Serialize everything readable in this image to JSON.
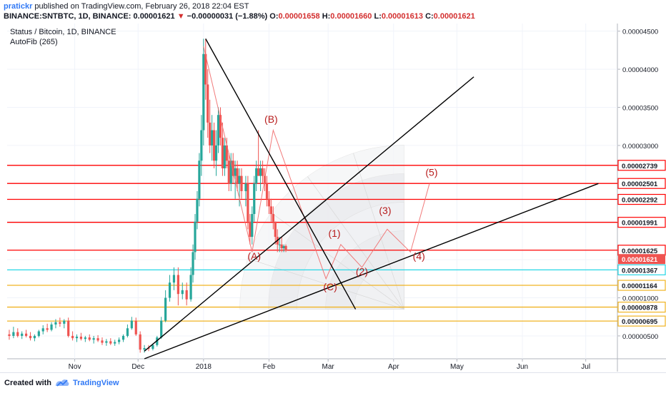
{
  "header": {
    "username": "pratickr",
    "published_text": "published on TradingView.com, February 26, 2018 22:04 EST",
    "symbol_text": "BINANCE:SNTBTC, 1D, BINANCE",
    "last_price": "0.00001621",
    "change_text": "−0.00000031 (−1.88%)",
    "o_label": "O:",
    "o_value": "0.00001658",
    "h_label": "H:",
    "h_value": "0.00001660",
    "l_label": "L:",
    "l_value": "0.00001613",
    "c_label": "C:",
    "c_value": "0.00001621"
  },
  "footer": {
    "created_with": "Created with",
    "brand": "TradingView"
  },
  "chart_data": {
    "type": "candlestick",
    "title": "Status / Bitcoin, 1D, BINANCE",
    "subtitle": "AutoFib (265)",
    "ylim": [
      2e-07,
      4.6e-06
    ],
    "y_ticks": [
      5e-07,
      1e-06,
      1.5e-06,
      2e-06,
      2.5e-06,
      3e-06,
      3.5e-06,
      4e-06,
      4.5e-06
    ],
    "y_tick_labels": [
      "0.00000500",
      "0.00001000",
      "0.00001500",
      "0.00002000",
      "0.00002500",
      "0.00003000",
      "0.00003500",
      "0.00004000",
      "0.00004500"
    ],
    "x_tick_labels": [
      "Nov",
      "Dec",
      "2018",
      "Feb",
      "Mar",
      "Apr",
      "May",
      "Jun",
      "Jul"
    ],
    "x_tick_days": [
      31,
      61,
      92,
      123,
      151,
      182,
      212,
      243,
      273
    ],
    "day_range": [
      -1,
      288
    ],
    "last_close_day": 157,
    "colors": {
      "up": "#26a69a",
      "down": "#ef5350",
      "fib": "#ff0000",
      "fib_label_bg": "#ff0000",
      "fib_cyan": "#26d7e6",
      "fib_gold": "#f0b323"
    },
    "price_tags": [
      {
        "value": 2.739e-06,
        "label": "0.00002739",
        "style": "red"
      },
      {
        "value": 2.501e-06,
        "label": "0.00002501",
        "style": "red"
      },
      {
        "value": 2.292e-06,
        "label": "0.00002292",
        "style": "red"
      },
      {
        "value": 1.991e-06,
        "label": "0.00001991",
        "style": "red"
      },
      {
        "value": 1.625e-06,
        "label": "0.00001625",
        "style": "red"
      },
      {
        "value": 1.621e-06,
        "label": "0.00001621",
        "style": "last"
      },
      {
        "value": 1.367e-06,
        "label": "0.00001367",
        "style": "cyan"
      },
      {
        "value": 1.164e-06,
        "label": "0.00001164",
        "style": "gold"
      },
      {
        "value": 8.78e-07,
        "label": "0.00000878",
        "style": "gold"
      },
      {
        "value": 6.95e-07,
        "label": "0.00000695",
        "style": "gold"
      }
    ],
    "fib_levels": [
      {
        "value": 2.739e-06,
        "color": "red"
      },
      {
        "value": 2.501e-06,
        "color": "red"
      },
      {
        "value": 2.292e-06,
        "color": "red"
      },
      {
        "value": 1.991e-06,
        "color": "red"
      },
      {
        "value": 1.625e-06,
        "color": "red"
      },
      {
        "value": 1.367e-06,
        "color": "cyan"
      },
      {
        "value": 1.164e-06,
        "color": "gold"
      },
      {
        "value": 8.78e-07,
        "color": "gold"
      },
      {
        "value": 6.95e-07,
        "color": "gold"
      }
    ],
    "trend_lines": [
      {
        "from": [
          93,
          4.4e-06
        ],
        "to": [
          164,
          8.5e-07
        ]
      },
      {
        "from": [
          64,
          3e-07
        ],
        "to": [
          220,
          3.9e-06
        ]
      },
      {
        "from": [
          64,
          2e-07
        ],
        "to": [
          279,
          2.5e-06
        ]
      }
    ],
    "wave_path": [
      [
        92,
        4.3e-06
      ],
      [
        115,
        1.6e-06
      ],
      [
        125,
        3.2e-06
      ],
      [
        150,
        1.25e-06
      ],
      [
        157,
        1.7e-06
      ],
      [
        167,
        1.4e-06
      ],
      [
        179,
        1.9e-06
      ],
      [
        190,
        1.6e-06
      ],
      [
        199,
        2.5e-06
      ]
    ],
    "wave_labels": [
      {
        "text": "(B)",
        "day": 124,
        "price": 3.3e-06
      },
      {
        "text": "(A)",
        "day": 116,
        "price": 1.5e-06
      },
      {
        "text": "(C)",
        "day": 152,
        "price": 1.1e-06
      },
      {
        "text": "(1)",
        "day": 154,
        "price": 1.8e-06
      },
      {
        "text": "(2)",
        "day": 167,
        "price": 1.3e-06
      },
      {
        "text": "(3)",
        "day": 178,
        "price": 2.1e-06
      },
      {
        "text": "(4)",
        "day": 194,
        "price": 1.5e-06
      },
      {
        "text": "(5)",
        "day": 200,
        "price": 2.6e-06
      }
    ],
    "fan_center": [
      187,
      8.5e-07
    ],
    "candles": [
      {
        "d": 0,
        "o": 5.2e-07,
        "h": 5.8e-07,
        "l": 4.5e-07,
        "c": 5e-07
      },
      {
        "d": 2,
        "o": 5e-07,
        "h": 6.2e-07,
        "l": 4.7e-07,
        "c": 5.5e-07
      },
      {
        "d": 4,
        "o": 5.5e-07,
        "h": 6e-07,
        "l": 4.8e-07,
        "c": 5e-07
      },
      {
        "d": 6,
        "o": 5e-07,
        "h": 5.6e-07,
        "l": 4.6e-07,
        "c": 5.3e-07
      },
      {
        "d": 8,
        "o": 5.3e-07,
        "h": 5.8e-07,
        "l": 4.8e-07,
        "c": 5e-07
      },
      {
        "d": 10,
        "o": 5e-07,
        "h": 5.5e-07,
        "l": 4.4e-07,
        "c": 4.7e-07
      },
      {
        "d": 12,
        "o": 4.7e-07,
        "h": 5.2e-07,
        "l": 4.3e-07,
        "c": 5e-07
      },
      {
        "d": 14,
        "o": 5e-07,
        "h": 5.8e-07,
        "l": 4.8e-07,
        "c": 5.6e-07
      },
      {
        "d": 16,
        "o": 5.6e-07,
        "h": 6.4e-07,
        "l": 5.2e-07,
        "c": 6e-07
      },
      {
        "d": 18,
        "o": 6e-07,
        "h": 6.6e-07,
        "l": 5.5e-07,
        "c": 5.8e-07
      },
      {
        "d": 20,
        "o": 5.8e-07,
        "h": 6.8e-07,
        "l": 5.6e-07,
        "c": 6.5e-07
      },
      {
        "d": 22,
        "o": 6.5e-07,
        "h": 7.2e-07,
        "l": 6e-07,
        "c": 6.8e-07
      },
      {
        "d": 24,
        "o": 6.8e-07,
        "h": 7.4e-07,
        "l": 6.2e-07,
        "c": 6.6e-07
      },
      {
        "d": 26,
        "o": 6.6e-07,
        "h": 7.2e-07,
        "l": 6e-07,
        "c": 7e-07
      },
      {
        "d": 28,
        "o": 7e-07,
        "h": 7.4e-07,
        "l": 4.8e-07,
        "c": 5e-07
      },
      {
        "d": 30,
        "o": 5e-07,
        "h": 5.6e-07,
        "l": 4.4e-07,
        "c": 4.7e-07
      },
      {
        "d": 32,
        "o": 4.7e-07,
        "h": 5.2e-07,
        "l": 4.2e-07,
        "c": 4.9e-07
      },
      {
        "d": 34,
        "o": 4.9e-07,
        "h": 5.4e-07,
        "l": 4.4e-07,
        "c": 4.6e-07
      },
      {
        "d": 36,
        "o": 4.6e-07,
        "h": 5e-07,
        "l": 4.2e-07,
        "c": 4.8e-07
      },
      {
        "d": 38,
        "o": 4.8e-07,
        "h": 5.2e-07,
        "l": 4.3e-07,
        "c": 4.5e-07
      },
      {
        "d": 40,
        "o": 4.5e-07,
        "h": 5e-07,
        "l": 4e-07,
        "c": 4.7e-07
      },
      {
        "d": 42,
        "o": 4.7e-07,
        "h": 5.1e-07,
        "l": 4.2e-07,
        "c": 4.4e-07
      },
      {
        "d": 44,
        "o": 4.4e-07,
        "h": 4.8e-07,
        "l": 3.8e-07,
        "c": 4.1e-07
      },
      {
        "d": 46,
        "o": 4.1e-07,
        "h": 4.6e-07,
        "l": 3.7e-07,
        "c": 4.3e-07
      },
      {
        "d": 48,
        "o": 4.3e-07,
        "h": 4.7e-07,
        "l": 3.8e-07,
        "c": 4e-07
      },
      {
        "d": 50,
        "o": 4e-07,
        "h": 4.5e-07,
        "l": 3.7e-07,
        "c": 4.2e-07
      },
      {
        "d": 52,
        "o": 4.2e-07,
        "h": 4.8e-07,
        "l": 3.9e-07,
        "c": 4.5e-07
      },
      {
        "d": 54,
        "o": 4.5e-07,
        "h": 5.2e-07,
        "l": 4.2e-07,
        "c": 5e-07
      },
      {
        "d": 56,
        "o": 5e-07,
        "h": 6.5e-07,
        "l": 4.8e-07,
        "c": 6e-07
      },
      {
        "d": 58,
        "o": 6e-07,
        "h": 7.5e-07,
        "l": 5.8e-07,
        "c": 7e-07
      },
      {
        "d": 60,
        "o": 7e-07,
        "h": 7.4e-07,
        "l": 5e-07,
        "c": 5.2e-07
      },
      {
        "d": 62,
        "o": 5.2e-07,
        "h": 5.6e-07,
        "l": 2.8e-07,
        "c": 3.2e-07
      },
      {
        "d": 64,
        "o": 3.2e-07,
        "h": 3.8e-07,
        "l": 2.8e-07,
        "c": 3.4e-07
      },
      {
        "d": 66,
        "o": 3.4e-07,
        "h": 3.8e-07,
        "l": 3e-07,
        "c": 3.3e-07
      },
      {
        "d": 68,
        "o": 3.3e-07,
        "h": 4e-07,
        "l": 3.1e-07,
        "c": 3.8e-07
      },
      {
        "d": 70,
        "o": 3.8e-07,
        "h": 5e-07,
        "l": 3.6e-07,
        "c": 4.8e-07
      },
      {
        "d": 72,
        "o": 4.8e-07,
        "h": 7.5e-07,
        "l": 4.6e-07,
        "c": 7e-07
      },
      {
        "d": 74,
        "o": 7e-07,
        "h": 1.1e-06,
        "l": 6.8e-07,
        "c": 1e-06
      },
      {
        "d": 76,
        "o": 1e-06,
        "h": 1.3e-06,
        "l": 9.5e-07,
        "c": 1.2e-06
      },
      {
        "d": 78,
        "o": 1.2e-06,
        "h": 1.4e-06,
        "l": 1.1e-06,
        "c": 1.3e-06
      },
      {
        "d": 80,
        "o": 1.3e-06,
        "h": 1.4e-06,
        "l": 9e-07,
        "c": 1.05e-06
      },
      {
        "d": 82,
        "o": 1.05e-06,
        "h": 1.2e-06,
        "l": 9.8e-07,
        "c": 1.1e-06
      },
      {
        "d": 84,
        "o": 1.1e-06,
        "h": 1.2e-06,
        "l": 9e-07,
        "c": 9.8e-07
      },
      {
        "d": 86,
        "o": 9.8e-07,
        "h": 1.4e-06,
        "l": 9.5e-07,
        "c": 1.3e-06
      },
      {
        "d": 87,
        "o": 1.3e-06,
        "h": 1.7e-06,
        "l": 1.2e-06,
        "c": 1.6e-06
      },
      {
        "d": 88,
        "o": 1.6e-06,
        "h": 2.1e-06,
        "l": 1.5e-06,
        "c": 2e-06
      },
      {
        "d": 89,
        "o": 2e-06,
        "h": 2.4e-06,
        "l": 1.9e-06,
        "c": 2.3e-06
      },
      {
        "d": 90,
        "o": 2.3e-06,
        "h": 2.9e-06,
        "l": 2.2e-06,
        "c": 2.8e-06
      },
      {
        "d": 91,
        "o": 2.8e-06,
        "h": 3.4e-06,
        "l": 2.6e-06,
        "c": 3.2e-06
      },
      {
        "d": 92,
        "o": 3.2e-06,
        "h": 4.4e-06,
        "l": 3e-06,
        "c": 4.2e-06
      },
      {
        "d": 93,
        "o": 4.2e-06,
        "h": 4.4e-06,
        "l": 3.6e-06,
        "c": 3.8e-06
      },
      {
        "d": 94,
        "o": 3.8e-06,
        "h": 4e-06,
        "l": 3.1e-06,
        "c": 3.3e-06
      },
      {
        "d": 95,
        "o": 3.3e-06,
        "h": 3.6e-06,
        "l": 2.9e-06,
        "c": 3e-06
      },
      {
        "d": 96,
        "o": 3e-06,
        "h": 3.4e-06,
        "l": 2.8e-06,
        "c": 3.2e-06
      },
      {
        "d": 97,
        "o": 3.2e-06,
        "h": 3.3e-06,
        "l": 2.7e-06,
        "c": 2.8e-06
      },
      {
        "d": 98,
        "o": 2.8e-06,
        "h": 3.2e-06,
        "l": 2.6e-06,
        "c": 3e-06
      },
      {
        "d": 99,
        "o": 3e-06,
        "h": 3.5e-06,
        "l": 2.9e-06,
        "c": 3.4e-06
      },
      {
        "d": 100,
        "o": 3.4e-06,
        "h": 3.5e-06,
        "l": 3e-06,
        "c": 3.1e-06
      },
      {
        "d": 101,
        "o": 3.1e-06,
        "h": 3.3e-06,
        "l": 2.6e-06,
        "c": 2.7e-06
      },
      {
        "d": 102,
        "o": 2.7e-06,
        "h": 3.1e-06,
        "l": 2.6e-06,
        "c": 3e-06
      },
      {
        "d": 103,
        "o": 3e-06,
        "h": 3.1e-06,
        "l": 2.7e-06,
        "c": 2.8e-06
      },
      {
        "d": 104,
        "o": 2.8e-06,
        "h": 2.9e-06,
        "l": 2.4e-06,
        "c": 2.5e-06
      },
      {
        "d": 105,
        "o": 2.5e-06,
        "h": 2.9e-06,
        "l": 2.4e-06,
        "c": 2.8e-06
      },
      {
        "d": 106,
        "o": 2.8e-06,
        "h": 2.9e-06,
        "l": 2.5e-06,
        "c": 2.6e-06
      },
      {
        "d": 107,
        "o": 2.6e-06,
        "h": 2.8e-06,
        "l": 2.3e-06,
        "c": 2.7e-06
      },
      {
        "d": 108,
        "o": 2.7e-06,
        "h": 2.8e-06,
        "l": 2.4e-06,
        "c": 2.5e-06
      },
      {
        "d": 109,
        "o": 2.5e-06,
        "h": 2.7e-06,
        "l": 2.2e-06,
        "c": 2.6e-06
      },
      {
        "d": 110,
        "o": 2.6e-06,
        "h": 2.7e-06,
        "l": 2.3e-06,
        "c": 2.4e-06
      },
      {
        "d": 112,
        "o": 2.4e-06,
        "h": 2.6e-06,
        "l": 2.2e-06,
        "c": 2.5e-06
      },
      {
        "d": 113,
        "o": 2.5e-06,
        "h": 2.6e-06,
        "l": 1.9e-06,
        "c": 2e-06
      },
      {
        "d": 114,
        "o": 2e-06,
        "h": 2.1e-06,
        "l": 1.7e-06,
        "c": 1.8e-06
      },
      {
        "d": 115,
        "o": 1.8e-06,
        "h": 2.2e-06,
        "l": 1.7e-06,
        "c": 2.1e-06
      },
      {
        "d": 116,
        "o": 2.1e-06,
        "h": 2.6e-06,
        "l": 2e-06,
        "c": 2.5e-06
      },
      {
        "d": 117,
        "o": 2.5e-06,
        "h": 2.8e-06,
        "l": 2.4e-06,
        "c": 2.7e-06
      },
      {
        "d": 118,
        "o": 2.7e-06,
        "h": 3.2e-06,
        "l": 2.6e-06,
        "c": 2.6e-06
      },
      {
        "d": 119,
        "o": 2.6e-06,
        "h": 2.8e-06,
        "l": 2.4e-06,
        "c": 2.7e-06
      },
      {
        "d": 120,
        "o": 2.7e-06,
        "h": 2.8e-06,
        "l": 2.5e-06,
        "c": 2.6e-06
      },
      {
        "d": 121,
        "o": 2.6e-06,
        "h": 2.7e-06,
        "l": 2.4e-06,
        "c": 2.5e-06
      },
      {
        "d": 122,
        "o": 2.5e-06,
        "h": 2.6e-06,
        "l": 2.2e-06,
        "c": 2.3e-06
      },
      {
        "d": 123,
        "o": 2.3e-06,
        "h": 2.4e-06,
        "l": 2.1e-06,
        "c": 2.2e-06
      },
      {
        "d": 124,
        "o": 2.2e-06,
        "h": 2.3e-06,
        "l": 2e-06,
        "c": 2.1e-06
      },
      {
        "d": 125,
        "o": 2.1e-06,
        "h": 2.2e-06,
        "l": 1.9e-06,
        "c": 2e-06
      },
      {
        "d": 126,
        "o": 2e-06,
        "h": 2e-06,
        "l": 1.7e-06,
        "c": 1.8e-06
      },
      {
        "d": 127,
        "o": 1.8e-06,
        "h": 1.9e-06,
        "l": 1.6e-06,
        "c": 1.7e-06
      },
      {
        "d": 128,
        "o": 1.7e-06,
        "h": 1.8e-06,
        "l": 1.6e-06,
        "c": 1.7e-06
      },
      {
        "d": 129,
        "o": 1.7e-06,
        "h": 1.8e-06,
        "l": 1.6e-06,
        "c": 1.65e-06
      },
      {
        "d": 130,
        "o": 1.65e-06,
        "h": 1.7e-06,
        "l": 1.6e-06,
        "c": 1.68e-06
      },
      {
        "d": 131,
        "o": 1.68e-06,
        "h": 1.7e-06,
        "l": 1.6e-06,
        "c": 1.62e-06
      }
    ]
  }
}
